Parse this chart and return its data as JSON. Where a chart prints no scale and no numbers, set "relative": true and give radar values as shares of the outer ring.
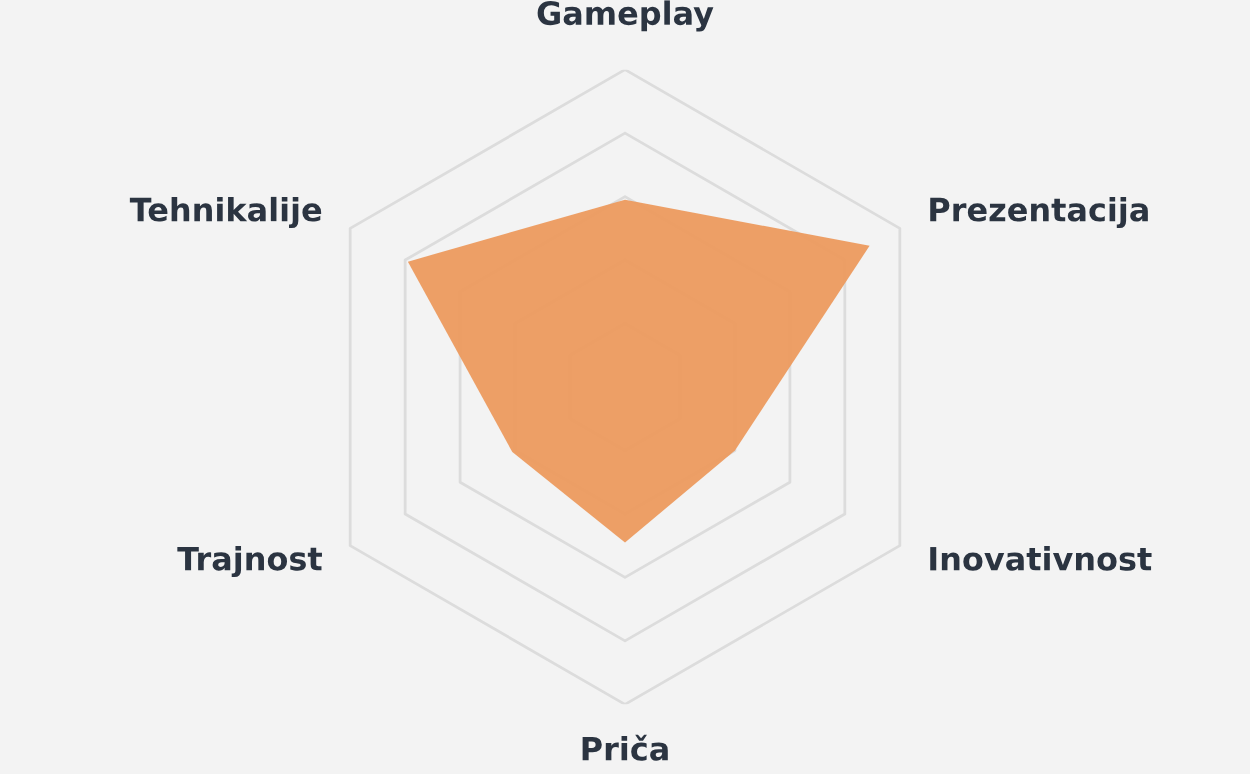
{
  "chart_data": {
    "type": "radar",
    "relative": true,
    "grid": true,
    "legend": false,
    "categories": [
      "Gameplay",
      "Prezentacija",
      "Inovativnost",
      "Priča",
      "Trajnost",
      "Tehnikalije"
    ],
    "series": [
      {
        "color": "#ec9a5e",
        "values": [
          0.59,
          0.89,
          0.4,
          0.49,
          0.41,
          0.79
        ]
      }
    ]
  }
}
